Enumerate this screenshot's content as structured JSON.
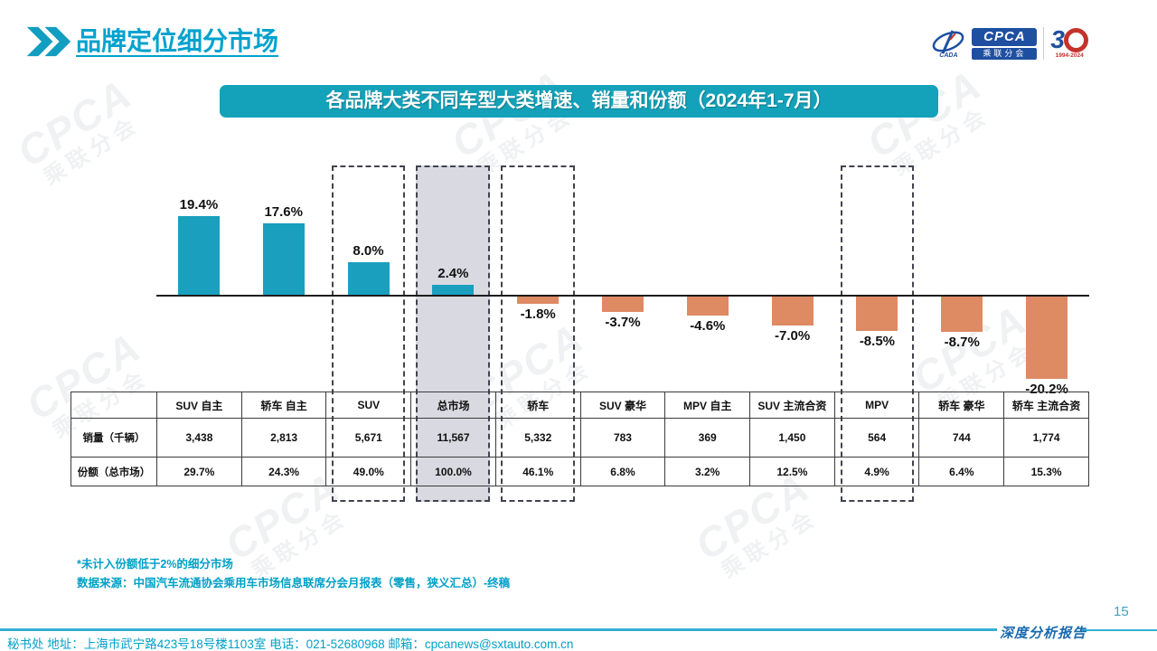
{
  "header": {
    "title": "品牌定位细分市场"
  },
  "logo": {
    "cada": "CADA",
    "cpca": "CPCA",
    "sub": "乘联分会",
    "anniv_number": "3",
    "anniv_years": "1994-2024"
  },
  "banner": {
    "text": "各品牌大类不同车型大类增速、销量和份额（2024年1-7月）"
  },
  "chart_data": {
    "type": "bar",
    "title": "各品牌大类不同车型大类增速、销量和份额（2024年1-7月）",
    "unit": "%",
    "categories": [
      "SUV 自主",
      "轿车 自主",
      "SUV",
      "总市场",
      "轿车",
      "SUV 豪华",
      "MPV 自主",
      "SUV 主流合资",
      "MPV",
      "轿车 豪华",
      "轿车 主流合资"
    ],
    "growth_pct": [
      19.4,
      17.6,
      8.0,
      2.4,
      -1.8,
      -3.7,
      -4.6,
      -7.0,
      -8.5,
      -8.7,
      -20.2
    ],
    "table_rows": {
      "sales_label": "销量（千辆）",
      "sales": [
        "3,438",
        "2,813",
        "5,671",
        "11,567",
        "5,332",
        "783",
        "369",
        "1,450",
        "564",
        "744",
        "1,774"
      ],
      "share_label": "份额（总市场）",
      "share": [
        "29.7%",
        "24.3%",
        "49.0%",
        "100.0%",
        "46.1%",
        "6.8%",
        "3.2%",
        "12.5%",
        "4.9%",
        "6.4%",
        "15.3%"
      ]
    },
    "dashed_outline_columns": [
      "SUV",
      "总市场",
      "轿车",
      "MPV"
    ],
    "shaded_column": "总市场",
    "positive_color": "#1A9FBE",
    "negative_color": "#DE8A63",
    "ylim": [
      -22,
      22
    ],
    "grid": false,
    "legend": false
  },
  "notes": {
    "line1": "*未计入份额低于2%的细分市场",
    "line2": "数据来源：中国汽车流通协会乘用车市场信息联席分会月报表（零售，狭义汇总）-终稿"
  },
  "footer": {
    "contact": "秘书处  地址：上海市武宁路423号18号楼1103室 电话：021-52680968   邮箱：cpcanews@sxtauto.com.cn",
    "report_label": "深度分析报告",
    "page_number": "15"
  },
  "watermark": {
    "line1": "CPCA",
    "line2": "乘联分会"
  }
}
